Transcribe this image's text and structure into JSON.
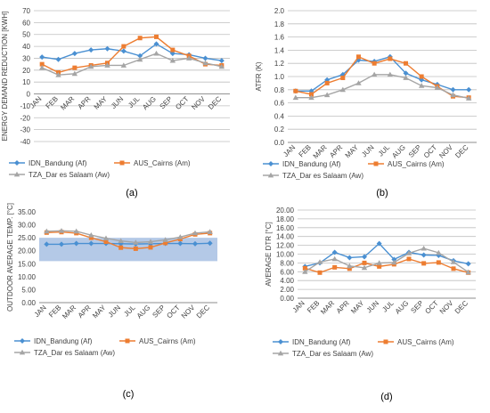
{
  "colors": {
    "series1": "#4a90d2",
    "series2": "#ed7d31",
    "series3": "#a5a5a5",
    "band": "#b4c9e7",
    "axis": "#bfbfbf",
    "text": "#404040"
  },
  "chart_data": [
    {
      "id": "a",
      "panel_label": "(a)",
      "type": "line",
      "title": "",
      "xlabel": "",
      "ylabel": "ENERGY DEMAND REDUCTION [KWH]",
      "x": [
        "JAN",
        "FEB",
        "MAR",
        "APR",
        "MAY",
        "JUN",
        "JUL",
        "AUG",
        "SEP",
        "OCT",
        "NOV",
        "DEC"
      ],
      "ylim": [
        -40,
        70
      ],
      "yticks": [
        -40,
        -30,
        -20,
        -10,
        0,
        10,
        20,
        30,
        40,
        50,
        60,
        70
      ],
      "ytick_decimals": 0,
      "grid": true,
      "legend": "bottom",
      "series": [
        {
          "name": "IDN_Bandung (Af)",
          "color": "#4a90d2",
          "marker": "diamond",
          "values": [
            31,
            29,
            34,
            37,
            38,
            36,
            32,
            42,
            34,
            33,
            30,
            28
          ]
        },
        {
          "name": "AUS_Cairns (Am)",
          "color": "#ed7d31",
          "marker": "square",
          "values": [
            25,
            18,
            22,
            24,
            26,
            40,
            47,
            48,
            37,
            32,
            25,
            24
          ]
        },
        {
          "name": "TZA_Dar es Salaam (Aw)",
          "color": "#a5a5a5",
          "marker": "triangle",
          "values": [
            22,
            16,
            17,
            23,
            24,
            24,
            29,
            34,
            28,
            30,
            26,
            23
          ]
        }
      ]
    },
    {
      "id": "b",
      "panel_label": "(b)",
      "type": "line",
      "title": "",
      "xlabel": "",
      "ylabel": "ATFR (K)",
      "x": [
        "JAN",
        "FEB",
        "MAR",
        "APR",
        "MAY",
        "JUN",
        "JUL",
        "AUG",
        "SEP",
        "OCT",
        "NOV",
        "DEC"
      ],
      "ylim": [
        0,
        2.0
      ],
      "yticks": [
        0,
        0.2,
        0.4,
        0.6,
        0.8,
        1.0,
        1.2,
        1.4,
        1.6,
        1.8,
        2.0
      ],
      "ytick_decimals": 1,
      "grid": true,
      "legend": "bottom",
      "series": [
        {
          "name": "IDN_Bandung (Af)",
          "color": "#4a90d2",
          "marker": "diamond",
          "values": [
            0.78,
            0.78,
            0.95,
            1.03,
            1.25,
            1.23,
            1.3,
            1.05,
            0.95,
            0.88,
            0.8,
            0.8
          ]
        },
        {
          "name": "AUS_Cairns (Am)",
          "color": "#ed7d31",
          "marker": "square",
          "values": [
            0.78,
            0.73,
            0.9,
            0.98,
            1.3,
            1.2,
            1.27,
            1.2,
            1.0,
            0.85,
            0.7,
            0.68
          ]
        },
        {
          "name": "TZA_Dar es Salaam (Aw)",
          "color": "#a5a5a5",
          "marker": "triangle",
          "values": [
            0.68,
            0.68,
            0.72,
            0.8,
            0.9,
            1.03,
            1.03,
            0.98,
            0.86,
            0.83,
            0.72,
            0.67
          ]
        }
      ]
    },
    {
      "id": "c",
      "panel_label": "(c)",
      "type": "line",
      "title": "",
      "xlabel": "",
      "ylabel": "OUTDOOR AVERAGE TEMP. [°C]",
      "x": [
        "JAN",
        "FEB",
        "MAR",
        "APR",
        "MAY",
        "JUN",
        "JUL",
        "AUG",
        "SEP",
        "OCT",
        "NOV",
        "DEC"
      ],
      "ylim": [
        0,
        35
      ],
      "yticks": [
        0,
        5,
        10,
        15,
        20,
        25,
        30,
        35
      ],
      "ytick_decimals": 2,
      "grid": false,
      "band": [
        16.0,
        25.0
      ],
      "legend": "bottom",
      "series": [
        {
          "name": "IDN_Bandung (Af)",
          "color": "#4a90d2",
          "marker": "diamond",
          "values": [
            22.5,
            22.5,
            22.8,
            22.8,
            22.8,
            22.7,
            22.6,
            22.7,
            22.8,
            22.8,
            22.7,
            22.9
          ]
        },
        {
          "name": "AUS_Cairns (Am)",
          "color": "#ed7d31",
          "marker": "square",
          "values": [
            27.0,
            27.2,
            26.8,
            25.0,
            23.5,
            21.2,
            20.8,
            21.3,
            23.0,
            24.5,
            26.3,
            26.8
          ]
        },
        {
          "name": "TZA_Dar es Salaam (Aw)",
          "color": "#a5a5a5",
          "marker": "triangle",
          "values": [
            27.5,
            27.7,
            27.5,
            26.0,
            24.8,
            23.8,
            23.2,
            23.5,
            24.2,
            25.3,
            26.8,
            27.3
          ]
        }
      ]
    },
    {
      "id": "d",
      "panel_label": "(d)",
      "type": "line",
      "title": "",
      "xlabel": "",
      "ylabel": "AVERAGE DTR [°C]",
      "x": [
        "JAN",
        "FEB",
        "MAR",
        "APR",
        "MAY",
        "JUN",
        "JUL",
        "AUG",
        "SEP",
        "OCT",
        "NOV",
        "DEC"
      ],
      "ylim": [
        0,
        20
      ],
      "yticks": [
        0,
        2,
        4,
        6,
        8,
        10,
        12,
        14,
        16,
        18,
        20
      ],
      "ytick_decimals": 2,
      "grid": true,
      "legend": "bottom",
      "series": [
        {
          "name": "IDN_Bandung (Af)",
          "color": "#4a90d2",
          "marker": "diamond",
          "values": [
            7.2,
            8.0,
            10.4,
            9.2,
            9.4,
            12.4,
            8.8,
            10.4,
            9.8,
            9.7,
            8.5,
            7.8
          ]
        },
        {
          "name": "AUS_Cairns (Am)",
          "color": "#ed7d31",
          "marker": "square",
          "values": [
            6.8,
            5.8,
            7.0,
            6.7,
            8.0,
            7.2,
            7.7,
            8.9,
            7.9,
            8.1,
            6.7,
            5.8
          ]
        },
        {
          "name": "TZA_Dar es Salaam (Aw)",
          "color": "#a5a5a5",
          "marker": "triangle",
          "values": [
            6.0,
            8.2,
            8.9,
            7.3,
            6.9,
            8.0,
            8.1,
            10.2,
            11.3,
            10.3,
            8.2,
            5.9
          ]
        }
      ]
    }
  ]
}
